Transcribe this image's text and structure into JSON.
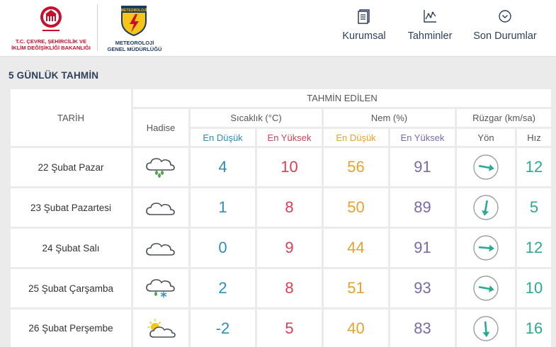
{
  "header": {
    "ministry_logo_text": "T.C. ÇEVRE, ŞEHİRCİLİK VE İKLİM DEĞİŞİKLİĞİ BAKANLIĞI",
    "ministry_logo_line1": "T.C. ÇEVRE, ŞEHİRCİLİK VE",
    "ministry_logo_line2": "İKLİM DEĞİŞİKLİĞİ BAKANLIĞI",
    "mgm_logo_line1": "METEOROLOJİ",
    "mgm_logo_line2": "GENEL MÜDÜRLÜĞÜ",
    "mgm_emblem_text": "METEOROLOJİ",
    "nav": [
      {
        "label": "Kurumsal",
        "icon": "document-icon"
      },
      {
        "label": "Tahminler",
        "icon": "chart-icon"
      },
      {
        "label": "Son Durumlar",
        "icon": "chevron-down-circle-icon"
      }
    ]
  },
  "page_title": "5 GÜNLÜK TAHMİN",
  "table": {
    "tahmin_edilen": "TAHMİN EDİLEN",
    "col_tarih": "TARİH",
    "col_hadise": "Hadise",
    "col_sicaklik": "Sıcaklık (°C)",
    "col_nem": "Nem (%)",
    "col_ruzgar": "Rüzgar (km/sa)",
    "en_dusuk": "En Düşük",
    "en_yuksek": "En Yüksek",
    "yon": "Yön",
    "hiz": "Hız",
    "rows": [
      {
        "date": "22 Şubat Pazar",
        "hadise": "rain-cloud-icon",
        "t_min": "4",
        "t_max": "10",
        "h_min": "56",
        "h_max": "91",
        "wind_dir_deg": 100,
        "wind_speed": "12"
      },
      {
        "date": "23 Şubat Pazartesi",
        "hadise": "cloudy-icon",
        "t_min": "1",
        "t_max": "8",
        "h_min": "50",
        "h_max": "89",
        "wind_dir_deg": 190,
        "wind_speed": "5"
      },
      {
        "date": "24 Şubat Salı",
        "hadise": "cloudy-icon",
        "t_min": "0",
        "t_max": "9",
        "h_min": "44",
        "h_max": "91",
        "wind_dir_deg": 95,
        "wind_speed": "12"
      },
      {
        "date": "25 Şubat Çarşamba",
        "hadise": "rain-snow-cloud-icon",
        "t_min": "2",
        "t_max": "8",
        "h_min": "51",
        "h_max": "93",
        "wind_dir_deg": 100,
        "wind_speed": "10"
      },
      {
        "date": "26 Şubat Perşembe",
        "hadise": "partly-cloudy-icon",
        "t_min": "-2",
        "t_max": "5",
        "h_min": "40",
        "h_max": "83",
        "wind_dir_deg": 175,
        "wind_speed": "16"
      }
    ]
  },
  "colors": {
    "min_blue": "#2c8fb8",
    "max_red": "#d64054",
    "humidity_min_orange": "#e8a22b",
    "humidity_max_purple": "#7a6aa8",
    "wind_teal": "#2aaa90",
    "brand_navy": "#2d3f5a",
    "ministry_red": "#c8102e"
  }
}
